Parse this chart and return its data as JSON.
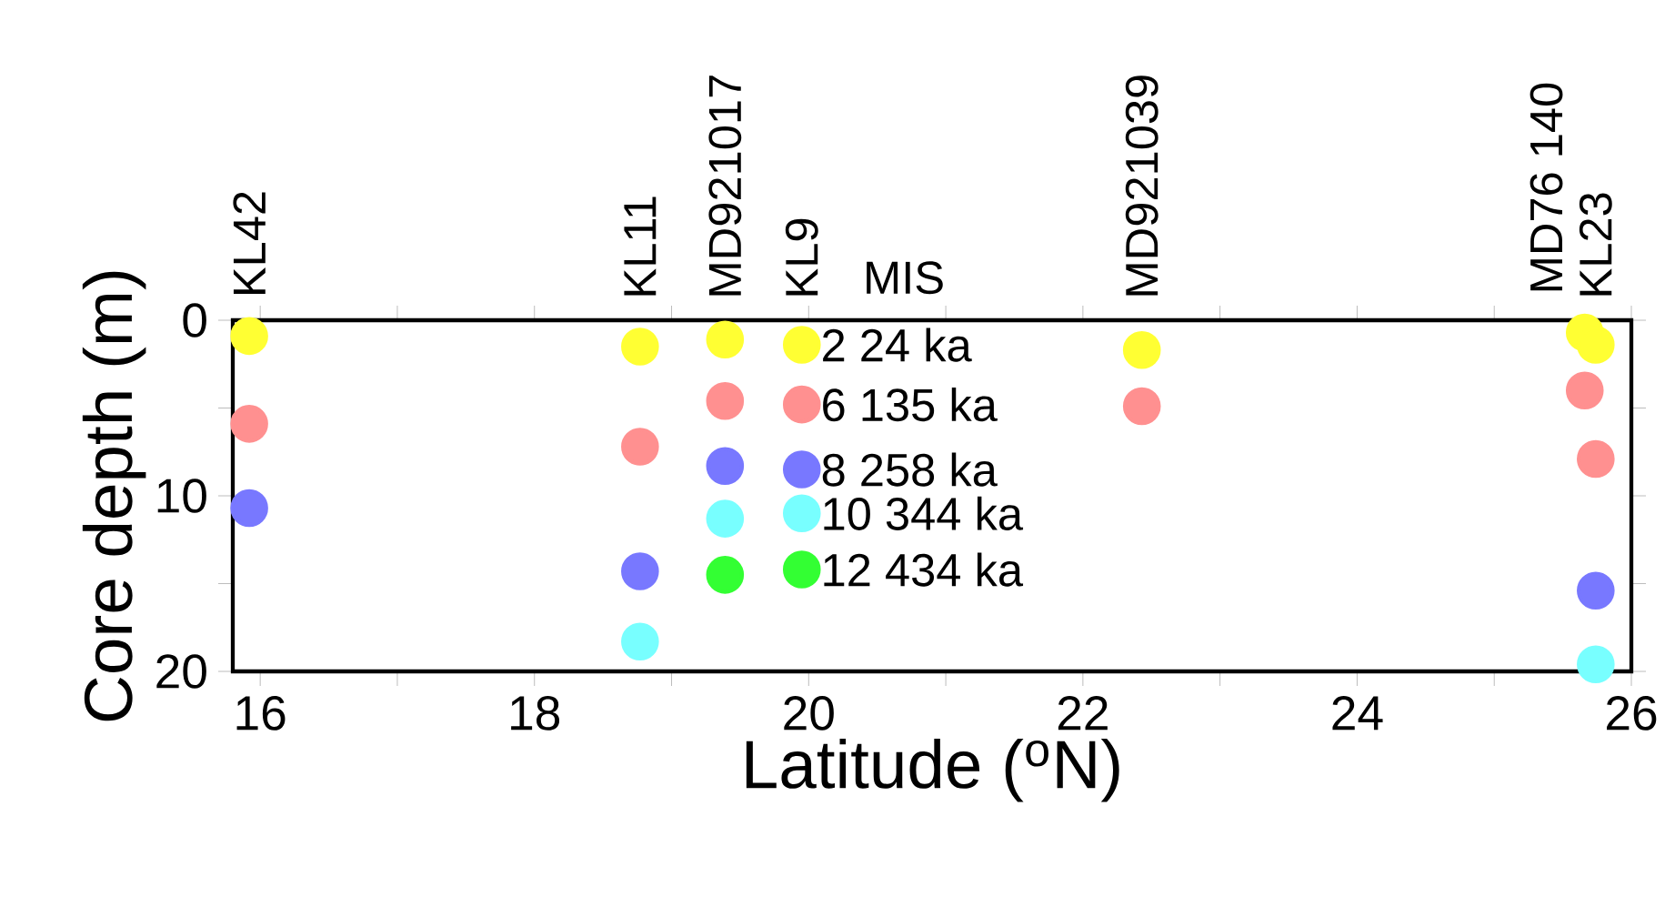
{
  "chart_data": {
    "type": "scatter",
    "xlabel": "Latitude ($^{o}$N)",
    "ylabel": "Core depth (m)",
    "xlim": [
      15.8,
      26
    ],
    "ylim": [
      20,
      0
    ],
    "xticks": [
      16,
      {
        "value": 17,
        "label": null
      },
      18,
      {
        "value": 19,
        "label": null
      },
      20,
      {
        "value": 21,
        "label": null
      },
      22,
      {
        "value": 23,
        "label": null
      },
      24,
      {
        "value": 25,
        "label": null
      },
      26
    ],
    "yticks": [
      0,
      {
        "value": 5,
        "label": null
      },
      10,
      {
        "value": 15,
        "label": null
      },
      20
    ],
    "marker": "circle",
    "grid": false,
    "series": [
      {
        "name": "2 24 ka",
        "color": "#ffff33",
        "x": [
          15.92,
          18.77,
          19.39,
          19.95,
          22.43,
          25.66,
          25.74
        ],
        "values": [
          0.9,
          1.5,
          1.1,
          1.4,
          1.7,
          0.7,
          1.4
        ]
      },
      {
        "name": "6 135 ka",
        "color": "#ff9090",
        "x": [
          15.92,
          18.77,
          19.39,
          19.95,
          22.43,
          25.66,
          25.74
        ],
        "values": [
          5.9,
          7.2,
          4.6,
          4.8,
          4.9,
          4.0,
          7.9
        ]
      },
      {
        "name": "8 258 ka",
        "color": "#7878ff",
        "x": [
          15.92,
          18.77,
          19.39,
          19.95,
          25.74
        ],
        "values": [
          10.7,
          14.3,
          8.3,
          8.5,
          15.4
        ]
      },
      {
        "name": "10 344 ka",
        "color": "#78ffff",
        "x": [
          18.77,
          19.39,
          19.95,
          25.74
        ],
        "values": [
          18.3,
          11.3,
          11.0,
          19.6
        ]
      },
      {
        "name": "12 434 ka",
        "color": "#33ff33",
        "x": [
          19.39,
          19.95
        ],
        "values": [
          14.5,
          14.2
        ]
      }
    ],
    "annotations": [
      "MIS",
      {
        "text": "KL42",
        "x": 15.92,
        "y": 0.9
      },
      {
        "text": "KL11",
        "x": 18.77,
        "y": 1.5
      },
      {
        "text": "MD921017",
        "x": 19.39,
        "y": 1.1
      },
      {
        "text": "KL9",
        "x": 19.95,
        "y": 1.4
      },
      {
        "text": "MD921039",
        "x": 22.43,
        "y": 1.7
      },
      {
        "text": "MD76 140",
        "x": 25.66,
        "y": 0.7
      },
      {
        "text": "KL23",
        "x": 25.74,
        "y": 1.4
      }
    ]
  }
}
